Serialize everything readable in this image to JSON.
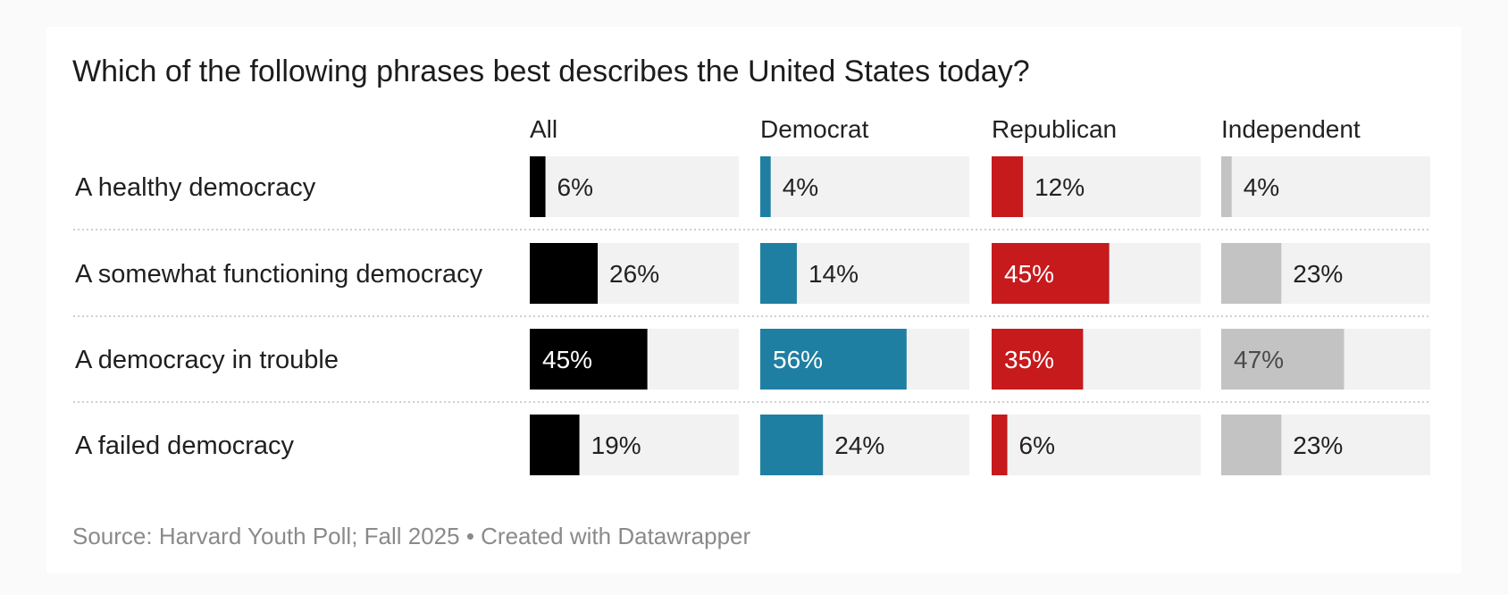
{
  "chart_data": {
    "type": "bar",
    "title": "Which of the following phrases best describes the United States today?",
    "categories": [
      "A healthy democracy",
      "A somewhat functioning democracy",
      "A democracy in trouble",
      "A failed democracy"
    ],
    "series": [
      {
        "name": "All",
        "values": [
          6,
          26,
          45,
          19
        ],
        "color": "#000000"
      },
      {
        "name": "Democrat",
        "values": [
          4,
          14,
          56,
          24
        ],
        "color": "#1f7fa3"
      },
      {
        "name": "Republican",
        "values": [
          12,
          45,
          35,
          6
        ],
        "color": "#c61a1d"
      },
      {
        "name": "Independent",
        "values": [
          4,
          23,
          47,
          23
        ],
        "color": "#c3c3c3"
      }
    ],
    "value_suffix": "%",
    "xlim": [
      0,
      80
    ],
    "track_color": "#f2f2f2",
    "source": "Source: Harvard Youth Poll; Fall 2025 • Created with Datawrapper"
  }
}
